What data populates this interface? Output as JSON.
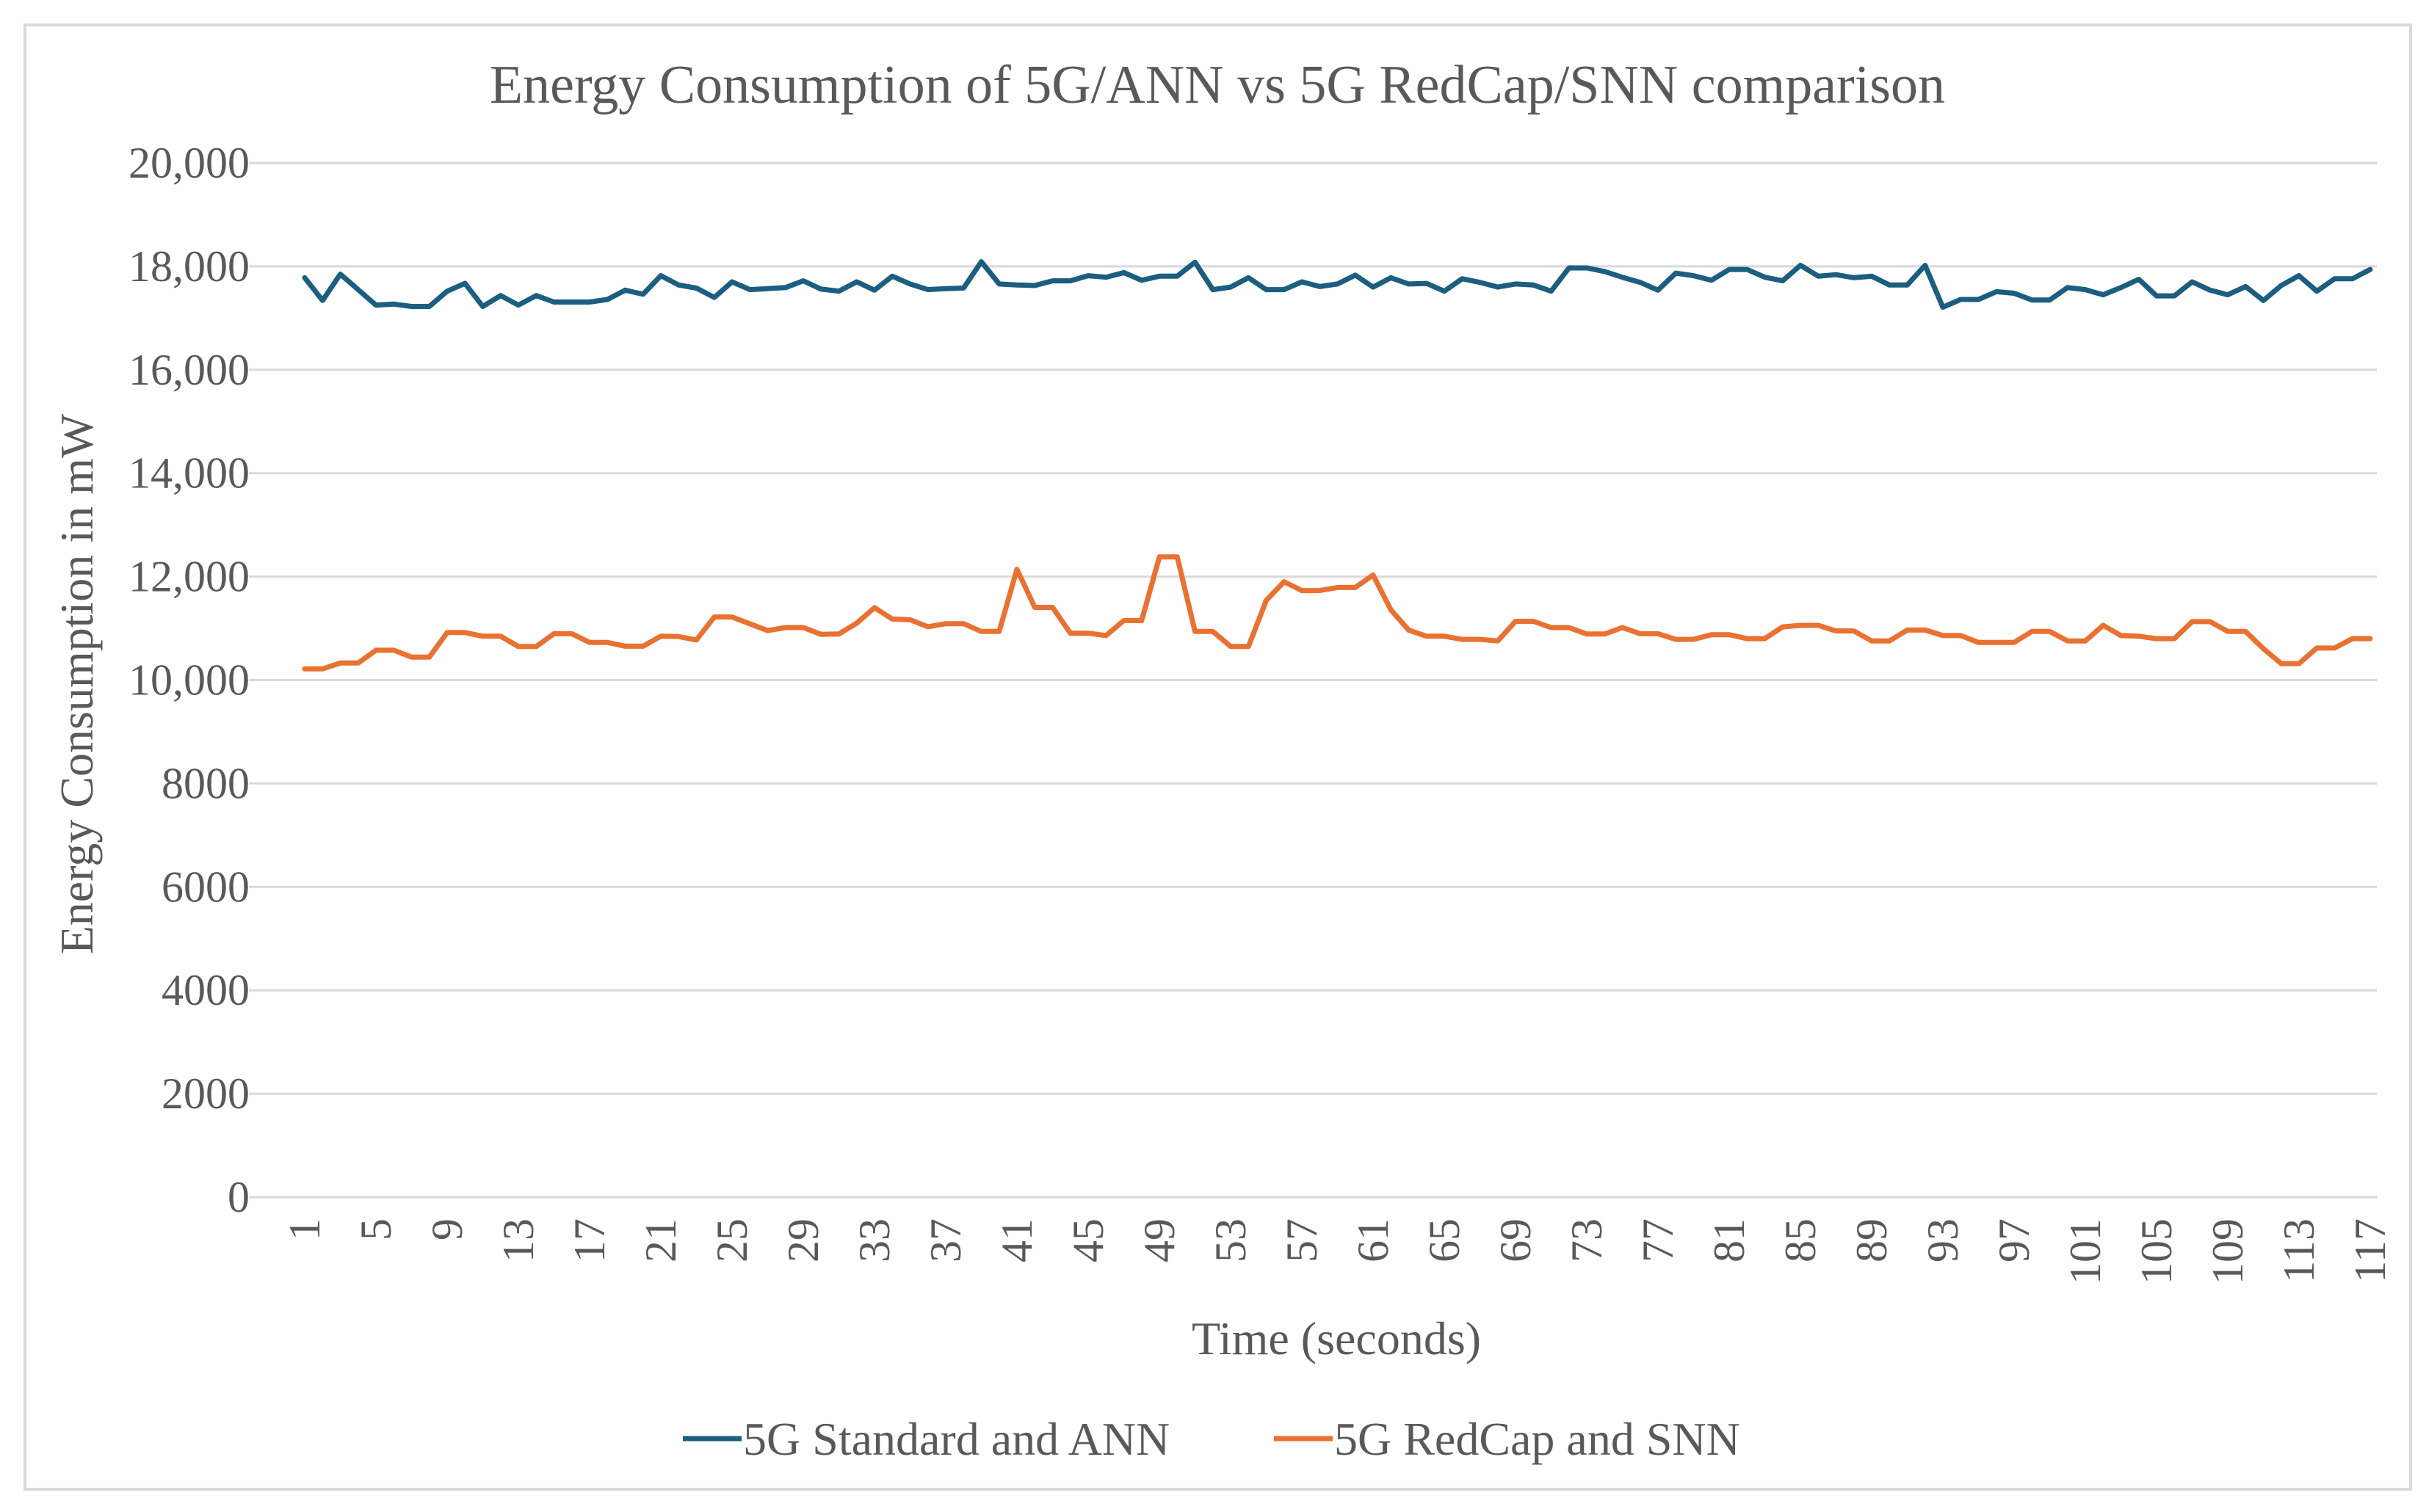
{
  "chart_data": {
    "type": "line",
    "title": "Energy Consumption of 5G/ANN vs 5G RedCap/SNN comparison",
    "xlabel": "Time (seconds)",
    "ylabel": "Energy Consumption in mW",
    "ylim": [
      0,
      20000
    ],
    "yticks": [
      0,
      2000,
      4000,
      6000,
      8000,
      10000,
      12000,
      14000,
      16000,
      18000,
      20000
    ],
    "ytick_labels": [
      "0",
      "2000",
      "4000",
      "6000",
      "8000",
      "10,000",
      "12,000",
      "14,000",
      "16,000",
      "18,000",
      "20,000"
    ],
    "xlim": [
      1,
      117
    ],
    "xtick_labels": [
      "1",
      "5",
      "9",
      "13",
      "17",
      "21",
      "25",
      "29",
      "33",
      "37",
      "41",
      "45",
      "49",
      "53",
      "57",
      "61",
      "65",
      "69",
      "73",
      "77",
      "81",
      "85",
      "89",
      "93",
      "97",
      "101",
      "105",
      "109",
      "113",
      "117"
    ],
    "grid": true,
    "legend_position": "bottom",
    "series": [
      {
        "name": "5G Standard and ANN",
        "color": "#1B5E80",
        "values": [
          17780,
          17340,
          17850,
          17550,
          17250,
          17270,
          17225,
          17225,
          17520,
          17670,
          17225,
          17435,
          17250,
          17435,
          17310,
          17310,
          17310,
          17360,
          17540,
          17460,
          17820,
          17640,
          17580,
          17400,
          17700,
          17550,
          17570,
          17590,
          17720,
          17560,
          17520,
          17700,
          17540,
          17810,
          17660,
          17550,
          17570,
          17580,
          18090,
          17660,
          17640,
          17630,
          17720,
          17720,
          17820,
          17790,
          17880,
          17730,
          17810,
          17810,
          18080,
          17550,
          17600,
          17780,
          17550,
          17550,
          17700,
          17610,
          17660,
          17830,
          17600,
          17780,
          17660,
          17670,
          17520,
          17760,
          17690,
          17600,
          17660,
          17640,
          17520,
          17970,
          17970,
          17900,
          17790,
          17690,
          17540,
          17870,
          17820,
          17730,
          17940,
          17940,
          17790,
          17720,
          18020,
          17810,
          17840,
          17780,
          17810,
          17640,
          17640,
          18020,
          17210,
          17360,
          17360,
          17510,
          17480,
          17350,
          17350,
          17590,
          17550,
          17450,
          17590,
          17750,
          17430,
          17430,
          17700,
          17540,
          17450,
          17610,
          17340,
          17630,
          17820,
          17520,
          17760,
          17760,
          17940
        ]
      },
      {
        "name": "5G RedCap and SNN",
        "color": "#E97132",
        "values": [
          10216,
          10216,
          10330,
          10330,
          10577,
          10577,
          10444,
          10444,
          10919,
          10919,
          10847,
          10847,
          10649,
          10649,
          10895,
          10895,
          10727,
          10727,
          10655,
          10655,
          10847,
          10840,
          10775,
          11220,
          11220,
          11087,
          10955,
          11015,
          11015,
          10883,
          10890,
          11100,
          11400,
          11180,
          11165,
          11030,
          11090,
          11090,
          10940,
          10940,
          12140,
          11405,
          11405,
          10905,
          10905,
          10860,
          11150,
          11150,
          12380,
          12380,
          10940,
          10940,
          10650,
          10650,
          11540,
          11900,
          11730,
          11730,
          11790,
          11790,
          12030,
          11357,
          10967,
          10847,
          10847,
          10787,
          10787,
          10757,
          11135,
          11135,
          11015,
          11015,
          10890,
          10890,
          11015,
          10895,
          10895,
          10787,
          10787,
          10877,
          10877,
          10800,
          10800,
          11027,
          11057,
          11057,
          10950,
          10950,
          10757,
          10757,
          10967,
          10967,
          10860,
          10860,
          10727,
          10727,
          10727,
          10940,
          10940,
          10757,
          10757,
          11057,
          10860,
          10847,
          10800,
          10800,
          11130,
          11130,
          10940,
          10940,
          10607,
          10318,
          10318,
          10619,
          10619,
          10800,
          10800
        ]
      }
    ]
  }
}
